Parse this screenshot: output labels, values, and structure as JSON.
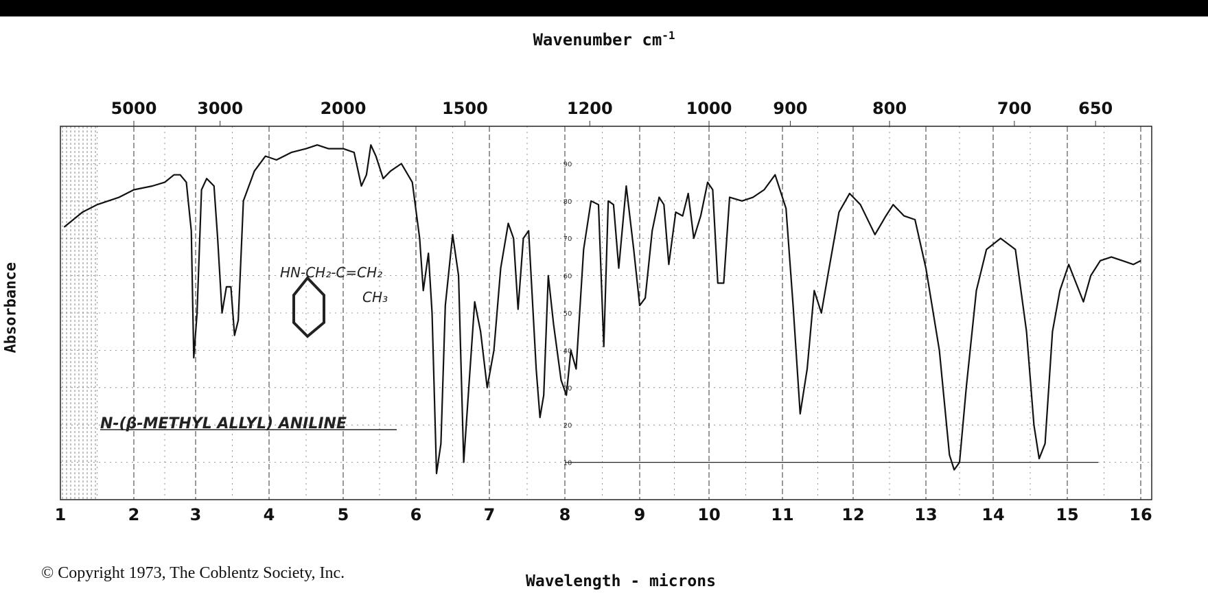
{
  "page": {
    "top_title": "Wavenumber cm",
    "top_title_sup": "-1",
    "y_label": "Absorbance",
    "bottom_title": "Wavelength - microns",
    "copyright": "© Copyright 1973, The Coblentz Society, Inc."
  },
  "chart_data": {
    "type": "line",
    "title": "",
    "xlabel": "Wavelength - microns",
    "x2label": "Wavenumber cm-1",
    "ylabel": "Absorbance",
    "xlim": [
      1,
      16
    ],
    "ylim": [
      0,
      100
    ],
    "x_ticks": [
      1,
      2,
      3,
      4,
      5,
      6,
      7,
      8,
      9,
      10,
      11,
      12,
      13,
      14,
      15,
      16
    ],
    "top_ticks": [
      {
        "label": "5000",
        "micron": 2.0
      },
      {
        "label": "3000",
        "micron": 3.333
      },
      {
        "label": "2000",
        "micron": 5.0
      },
      {
        "label": "1500",
        "micron": 6.667
      },
      {
        "label": "1200",
        "micron": 8.333
      },
      {
        "label": "1000",
        "micron": 10.0
      },
      {
        "label": "900",
        "micron": 11.111
      },
      {
        "label": "800",
        "micron": 12.5
      },
      {
        "label": "700",
        "micron": 14.286
      },
      {
        "label": "650",
        "micron": 15.385
      }
    ],
    "inner_y_ticks": [
      "90",
      "80",
      "70",
      "60",
      "50",
      "40",
      "30",
      "20",
      "10"
    ],
    "annotations": {
      "compound": "N-(β-METHYL ALLYL) ANILINE",
      "formula_line1": "HN-CH₂-C=CH₂",
      "formula_line2": "CH₃"
    },
    "grid": true,
    "series": [
      {
        "points": [
          [
            1.05,
            73
          ],
          [
            1.3,
            77
          ],
          [
            1.5,
            79
          ],
          [
            1.8,
            81
          ],
          [
            2.0,
            83
          ],
          [
            2.3,
            84
          ],
          [
            2.5,
            85
          ],
          [
            2.65,
            87
          ],
          [
            2.75,
            87
          ],
          [
            2.85,
            85
          ],
          [
            2.93,
            72
          ],
          [
            2.97,
            38
          ],
          [
            3.02,
            50
          ],
          [
            3.08,
            83
          ],
          [
            3.15,
            86
          ],
          [
            3.25,
            84
          ],
          [
            3.3,
            70
          ],
          [
            3.36,
            50
          ],
          [
            3.42,
            57
          ],
          [
            3.48,
            57
          ],
          [
            3.53,
            44
          ],
          [
            3.58,
            48
          ],
          [
            3.65,
            80
          ],
          [
            3.8,
            88
          ],
          [
            3.95,
            92
          ],
          [
            4.1,
            91
          ],
          [
            4.3,
            93
          ],
          [
            4.5,
            94
          ],
          [
            4.65,
            95
          ],
          [
            4.8,
            94
          ],
          [
            5.0,
            94
          ],
          [
            5.15,
            93
          ],
          [
            5.25,
            84
          ],
          [
            5.32,
            87
          ],
          [
            5.38,
            95
          ],
          [
            5.45,
            92
          ],
          [
            5.55,
            86
          ],
          [
            5.65,
            88
          ],
          [
            5.8,
            90
          ],
          [
            5.95,
            85
          ],
          [
            6.05,
            70
          ],
          [
            6.1,
            56
          ],
          [
            6.17,
            66
          ],
          [
            6.22,
            50
          ],
          [
            6.28,
            7
          ],
          [
            6.34,
            15
          ],
          [
            6.4,
            52
          ],
          [
            6.5,
            71
          ],
          [
            6.58,
            60
          ],
          [
            6.65,
            10
          ],
          [
            6.72,
            30
          ],
          [
            6.8,
            53
          ],
          [
            6.88,
            45
          ],
          [
            6.97,
            30
          ],
          [
            7.06,
            40
          ],
          [
            7.15,
            62
          ],
          [
            7.25,
            74
          ],
          [
            7.32,
            70
          ],
          [
            7.38,
            51
          ],
          [
            7.45,
            70
          ],
          [
            7.52,
            72
          ],
          [
            7.62,
            35
          ],
          [
            7.67,
            22
          ],
          [
            7.72,
            28
          ],
          [
            7.78,
            60
          ],
          [
            7.85,
            47
          ],
          [
            7.95,
            32
          ],
          [
            8.02,
            28
          ],
          [
            8.08,
            40
          ],
          [
            8.15,
            35
          ],
          [
            8.25,
            67
          ],
          [
            8.35,
            80
          ],
          [
            8.45,
            79
          ],
          [
            8.52,
            41
          ],
          [
            8.58,
            80
          ],
          [
            8.65,
            79
          ],
          [
            8.72,
            62
          ],
          [
            8.82,
            84
          ],
          [
            8.92,
            67
          ],
          [
            9.0,
            52
          ],
          [
            9.08,
            54
          ],
          [
            9.18,
            72
          ],
          [
            9.28,
            81
          ],
          [
            9.35,
            79
          ],
          [
            9.42,
            63
          ],
          [
            9.52,
            77
          ],
          [
            9.62,
            76
          ],
          [
            9.7,
            82
          ],
          [
            9.78,
            70
          ],
          [
            9.88,
            76
          ],
          [
            9.98,
            85
          ],
          [
            10.05,
            83
          ],
          [
            10.12,
            58
          ],
          [
            10.2,
            58
          ],
          [
            10.28,
            81
          ],
          [
            10.45,
            80
          ],
          [
            10.6,
            81
          ],
          [
            10.75,
            83
          ],
          [
            10.9,
            87
          ],
          [
            11.05,
            78
          ],
          [
            11.15,
            52
          ],
          [
            11.25,
            23
          ],
          [
            11.35,
            35
          ],
          [
            11.45,
            56
          ],
          [
            11.55,
            50
          ],
          [
            11.65,
            61
          ],
          [
            11.8,
            77
          ],
          [
            11.95,
            82
          ],
          [
            12.1,
            79
          ],
          [
            12.3,
            71
          ],
          [
            12.45,
            76
          ],
          [
            12.55,
            79
          ],
          [
            12.7,
            76
          ],
          [
            12.85,
            75
          ],
          [
            13.0,
            62
          ],
          [
            13.2,
            40
          ],
          [
            13.35,
            12
          ],
          [
            13.42,
            8
          ],
          [
            13.5,
            10
          ],
          [
            13.6,
            30
          ],
          [
            13.75,
            56
          ],
          [
            13.9,
            67
          ],
          [
            14.1,
            70
          ],
          [
            14.3,
            67
          ],
          [
            14.45,
            45
          ],
          [
            14.55,
            20
          ],
          [
            14.62,
            11
          ],
          [
            14.7,
            15
          ],
          [
            14.8,
            45
          ],
          [
            14.9,
            56
          ],
          [
            15.02,
            63
          ],
          [
            15.12,
            58
          ],
          [
            15.22,
            53
          ],
          [
            15.32,
            60
          ],
          [
            15.45,
            64
          ],
          [
            15.6,
            65
          ],
          [
            15.75,
            64
          ],
          [
            15.9,
            63
          ],
          [
            16.0,
            64
          ]
        ]
      }
    ]
  }
}
